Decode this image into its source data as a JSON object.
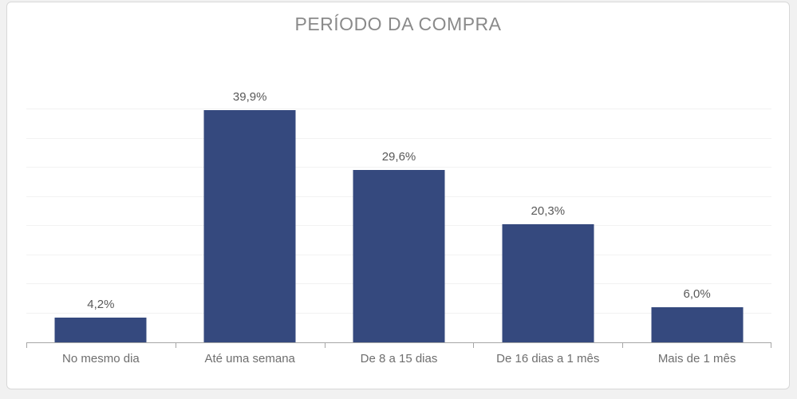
{
  "chart_data": {
    "type": "bar",
    "title": "PERÍODO DA COMPRA",
    "categories": [
      "No mesmo dia",
      "Até uma semana",
      "De 8 a 15 dias",
      "De 16 dias a 1 mês",
      "Mais de 1 mês"
    ],
    "values": [
      4.2,
      39.9,
      29.6,
      20.3,
      6.0
    ],
    "value_labels": [
      "4,2%",
      "39,9%",
      "29,6%",
      "20,3%",
      "6,0%"
    ],
    "xlabel": "",
    "ylabel": "",
    "ylim": [
      0,
      45
    ],
    "gridline_values": [
      5,
      10,
      15,
      20,
      25,
      30,
      35,
      40
    ],
    "grid": "faint-horizontal",
    "legend_position": "none",
    "bar_color": "#35497E",
    "title_color": "#8a8a8a",
    "value_label_color": "#595959",
    "category_label_color": "#6e6e6e",
    "axis_color": "#a6a6a6",
    "gridline_color": "#f2f2f2",
    "background_color": "#ffffff",
    "page_background_color": "#f1f1f1",
    "card_border_color": "#d8d8d8"
  }
}
